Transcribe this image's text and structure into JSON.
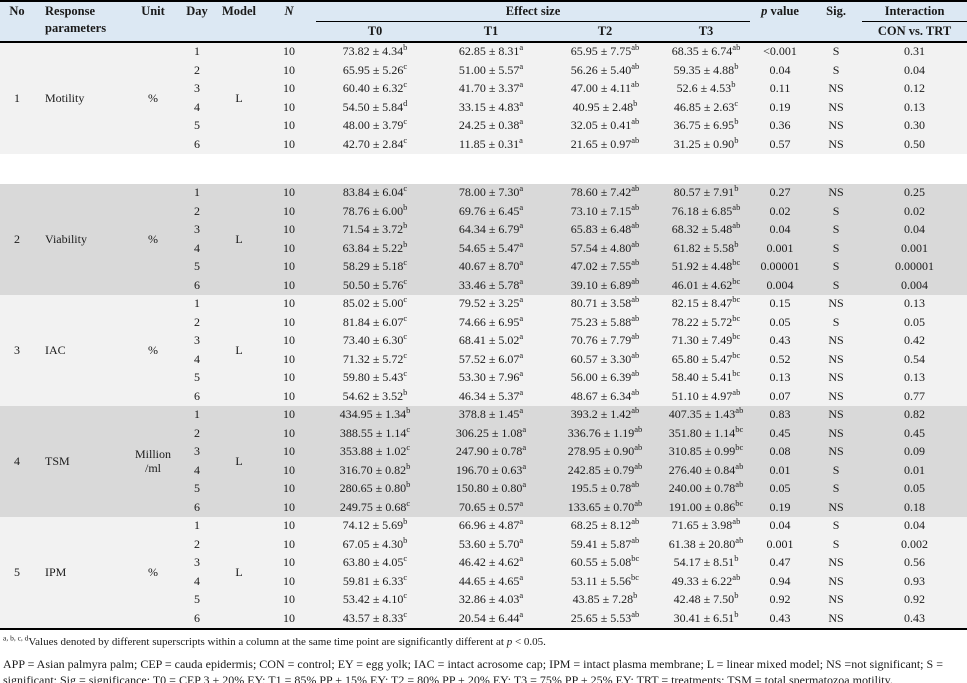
{
  "colors": {
    "header_bg": "#dce8f3",
    "band_gray": "#d9d9d9",
    "band_light": "#f2f2f2",
    "border": "#000000",
    "text": "#1a1a1a"
  },
  "table": {
    "header": {
      "no": "No",
      "response": "Response parameters",
      "unit": "Unit",
      "day": "Day",
      "model": "Model",
      "n": "N",
      "effect_size": "Effect size",
      "treatments": [
        "T0",
        "T1",
        "T2",
        "T3"
      ],
      "p_italic": "p",
      "p_rest": " value",
      "sig": "Sig.",
      "interaction": "Interaction",
      "interaction_sub": "CON vs. TRT"
    },
    "groups": [
      {
        "no": "1",
        "name": "Motility",
        "unit": "%",
        "model": "L",
        "shade": "light",
        "spacer_after": true,
        "rows": [
          {
            "day": "1",
            "n": "10",
            "t0": "73.82 ± 4.34^b",
            "t1": "62.85 ± 8.31^a",
            "t2": "65.95 ± 7.75^ab",
            "t3": "68.35 ± 6.74^ab",
            "p": "<0.001",
            "sig": "S",
            "interaction": "0.31"
          },
          {
            "day": "2",
            "n": "10",
            "t0": "65.95 ± 5.26^c",
            "t1": "51.00 ± 5.57^a",
            "t2": "56.26 ± 5.40^ab",
            "t3": "59.35 ± 4.88^b",
            "p": "0.04",
            "sig": "S",
            "interaction": "0.04"
          },
          {
            "day": "3",
            "n": "10",
            "t0": "60.40 ± 6.32^c",
            "t1": "41.70 ± 3.37^a",
            "t2": "47.00 ± 4.11^ab",
            "t3": "52.6 ± 4.53^b",
            "p": "0.11",
            "sig": "NS",
            "interaction": "0.12"
          },
          {
            "day": "4",
            "n": "10",
            "t0": "54.50 ± 5.84^d",
            "t1": "33.15 ± 4.83^a",
            "t2": "40.95 ± 2.48^b",
            "t3": "46.85 ± 2.63^c",
            "p": "0.19",
            "sig": "NS",
            "interaction": "0.13"
          },
          {
            "day": "5",
            "n": "10",
            "t0": "48.00 ± 3.79^c",
            "t1": "24.25 ± 0.38^a",
            "t2": "32.05 ± 0.41^ab",
            "t3": "36.75 ± 6.95^b",
            "p": "0.36",
            "sig": "NS",
            "interaction": "0.30"
          },
          {
            "day": "6",
            "n": "10",
            "t0": "42.70 ± 2.84^c",
            "t1": "11.85 ± 0.31^a",
            "t2": "21.65 ± 0.97^ab",
            "t3": "31.25 ± 0.90^b",
            "p": "0.57",
            "sig": "NS",
            "interaction": "0.50"
          }
        ]
      },
      {
        "no": "2",
        "name": "Viability",
        "unit": "%",
        "model": "L",
        "shade": "gray",
        "spacer_after": false,
        "rows": [
          {
            "day": "1",
            "n": "10",
            "t0": "83.84 ± 6.04^c",
            "t1": "78.00 ± 7.30^a",
            "t2": "78.60 ± 7.42^ab",
            "t3": "80.57 ± 7.91^b",
            "p": "0.27",
            "sig": "NS",
            "interaction": "0.25"
          },
          {
            "day": "2",
            "n": "10",
            "t0": "78.76 ± 6.00^b",
            "t1": "69.76 ± 6.45^a",
            "t2": "73.10 ± 7.15^ab",
            "t3": "76.18 ± 6.85^ab",
            "p": "0.02",
            "sig": "S",
            "interaction": "0.02"
          },
          {
            "day": "3",
            "n": "10",
            "t0": "71.54 ± 3.72^b",
            "t1": "64.34 ± 6.79^a",
            "t2": "65.83 ± 6.48^ab",
            "t3": "68.32 ± 5.48^ab",
            "p": "0.04",
            "sig": "S",
            "interaction": "0.04"
          },
          {
            "day": "4",
            "n": "10",
            "t0": "63.84 ± 5.22^b",
            "t1": "54.65 ± 5.47^a",
            "t2": "57.54 ± 4.80^ab",
            "t3": "61.82 ± 5.58^b",
            "p": "0.001",
            "sig": "S",
            "interaction": "0.001"
          },
          {
            "day": "5",
            "n": "10",
            "t0": "58.29 ± 5.18^c",
            "t1": "40.67 ± 8.70^a",
            "t2": "47.02 ± 7.55^ab",
            "t3": "51.92 ± 4.48^bc",
            "p": "0.00001",
            "sig": "S",
            "interaction": "0.00001"
          },
          {
            "day": "6",
            "n": "10",
            "t0": "50.50 ± 5.76^c",
            "t1": "33.46 ± 5.78^a",
            "t2": "39.10 ± 6.89^ab",
            "t3": "46.01 ± 4.62^bc",
            "p": "0.004",
            "sig": "S",
            "interaction": "0.004"
          }
        ]
      },
      {
        "no": "3",
        "name": "IAC",
        "unit": "%",
        "model": "L",
        "shade": "light",
        "spacer_after": false,
        "rows": [
          {
            "day": "1",
            "n": "10",
            "t0": "85.02 ± 5.00^c",
            "t1": "79.52 ± 3.25^a",
            "t2": "80.71 ± 3.58^ab",
            "t3": "82.15 ± 8.47^bc",
            "p": "0.15",
            "sig": "NS",
            "interaction": "0.13"
          },
          {
            "day": "2",
            "n": "10",
            "t0": "81.84 ± 6.07^c",
            "t1": "74.66 ± 6.95^a",
            "t2": "75.23 ± 5.88^ab",
            "t3": "78.22 ± 5.72^bc",
            "p": "0.05",
            "sig": "S",
            "interaction": "0.05"
          },
          {
            "day": "3",
            "n": "10",
            "t0": "73.40 ± 6.30^c",
            "t1": "68.41 ± 5.02^a",
            "t2": "70.76 ± 7.79^ab",
            "t3": "71.30 ± 7.49^bc",
            "p": "0.43",
            "sig": "NS",
            "interaction": "0.42"
          },
          {
            "day": "4",
            "n": "10",
            "t0": "71.32 ± 5.72^c",
            "t1": "57.52 ± 6.07^a",
            "t2": "60.57 ± 3.30^ab",
            "t3": "65.80 ± 5.47^bc",
            "p": "0.52",
            "sig": "NS",
            "interaction": "0.54"
          },
          {
            "day": "5",
            "n": "10",
            "t0": "59.80 ± 5.43^c",
            "t1": "53.30 ± 7.96^a",
            "t2": "56.00 ± 6.39^ab",
            "t3": "58.40 ± 5.41^bc",
            "p": "0.13",
            "sig": "NS",
            "interaction": "0.13"
          },
          {
            "day": "6",
            "n": "10",
            "t0": "54.62 ± 3.52^b",
            "t1": "46.34 ± 5.37^a",
            "t2": "48.67 ± 6.34^ab",
            "t3": "51.10 ± 4.97^ab",
            "p": "0.07",
            "sig": "NS",
            "interaction": "0.77"
          }
        ]
      },
      {
        "no": "4",
        "name": "TSM",
        "unit": "Million /ml",
        "model": "L",
        "shade": "gray",
        "spacer_after": false,
        "rows": [
          {
            "day": "1",
            "n": "10",
            "t0": "434.95 ± 1.34^b",
            "t1": "378.8 ± 1.45^a",
            "t2": "393.2 ± 1.42^ab",
            "t3": "407.35 ± 1.43^ab",
            "p": "0.83",
            "sig": "NS",
            "interaction": "0.82"
          },
          {
            "day": "2",
            "n": "10",
            "t0": "388.55 ± 1.14^c",
            "t1": "306.25 ± 1.08^a",
            "t2": "336.76 ± 1.19^ab",
            "t3": "351.80 ± 1.14^bc",
            "p": "0.45",
            "sig": "NS",
            "interaction": "0.45"
          },
          {
            "day": "3",
            "n": "10",
            "t0": "353.88 ± 1.02^c",
            "t1": "247.90 ± 0.78^a",
            "t2": "278.95 ± 0.90^ab",
            "t3": "310.85 ± 0.99^bc",
            "p": "0.08",
            "sig": "NS",
            "interaction": "0.09"
          },
          {
            "day": "4",
            "n": "10",
            "t0": "316.70 ± 0.82^b",
            "t1": "196.70 ± 0.63^a",
            "t2": "242.85 ± 0.79^ab",
            "t3": "276.40 ± 0.84^ab",
            "p": "0.01",
            "sig": "S",
            "interaction": "0.01"
          },
          {
            "day": "5",
            "n": "10",
            "t0": "280.65 ± 0.80^b",
            "t1": "150.80 ± 0.80^a",
            "t2": "195.5 ± 0.78^ab",
            "t3": "240.00 ± 0.78^ab",
            "p": "0.05",
            "sig": "S",
            "interaction": "0.05"
          },
          {
            "day": "6",
            "n": "10",
            "t0": "249.75 ± 0.68^c",
            "t1": "70.65 ± 0.57^a",
            "t2": "133.65 ± 0.70^ab",
            "t3": "191.00 ± 0.86^bc",
            "p": "0.19",
            "sig": "NS",
            "interaction": "0.18"
          }
        ]
      },
      {
        "no": "5",
        "name": "IPM",
        "unit": "%",
        "model": "L",
        "shade": "light",
        "spacer_after": false,
        "rows": [
          {
            "day": "1",
            "n": "10",
            "t0": "74.12 ± 5.69^b",
            "t1": "66.96 ± 4.87^a",
            "t2": "68.25 ± 8.12^ab",
            "t3": "71.65 ± 3.98^ab",
            "p": "0.04",
            "sig": "S",
            "interaction": "0.04"
          },
          {
            "day": "2",
            "n": "10",
            "t0": "67.05 ± 4.30^b",
            "t1": "53.60 ± 5.70^a",
            "t2": "59.41 ± 5.87^ab",
            "t3": "61.38 ± 20.80^ab",
            "p": "0.001",
            "sig": "S",
            "interaction": "0.002"
          },
          {
            "day": "3",
            "n": "10",
            "t0": "63.80 ± 4.05^c",
            "t1": "46.42 ± 4.62^a",
            "t2": "60.55 ± 5.08^bc",
            "t3": "54.17 ± 8.51^b",
            "p": "0.47",
            "sig": "NS",
            "interaction": "0.56"
          },
          {
            "day": "4",
            "n": "10",
            "t0": "59.81 ± 6.33^c",
            "t1": "44.65 ± 4.65^a",
            "t2": "53.11 ± 5.56^bc",
            "t3": "49.33 ± 6.22^ab",
            "p": "0.94",
            "sig": "NS",
            "interaction": "0.93"
          },
          {
            "day": "5",
            "n": "10",
            "t0": "53.42 ± 4.10^c",
            "t1": "32.86 ± 4.03^a",
            "t2": "43.85 ± 7.28^b",
            "t3": "42.48 ± 7.50^b",
            "p": "0.92",
            "sig": "NS",
            "interaction": "0.92"
          },
          {
            "day": "6",
            "n": "10",
            "t0": "43.57 ± 8.33^c",
            "t1": "20.54 ± 6.44^a",
            "t2": "25.65 ± 5.53^ab",
            "t3": "30.41 ± 6.51^b",
            "p": "0.43",
            "sig": "NS",
            "interaction": "0.43"
          }
        ]
      }
    ]
  },
  "footnotes": {
    "sup_prefix": "a, b, c, d",
    "note1_before_p": "Values denoted by different superscripts within a column at the same time point are significantly different at ",
    "note1_p": "p",
    "note1_after_p": " < 0.05.",
    "abbreviations": "APP = Asian palmyra palm; CEP = cauda epidermis; CON = control; EY = egg yolk; IAC = intact acrosome cap; IPM = intact plasma membrane; L = linear mixed model; NS =not significant; S = significant; Sig = significance; T0 = CEP 3 + 20% EY; T1 = 85% PP + 15% EY; T2 = 80% PP + 20% EY; T3 = 75% PP + 25% EY; TRT = treatments; TSM = total spermatozoa motility."
  }
}
